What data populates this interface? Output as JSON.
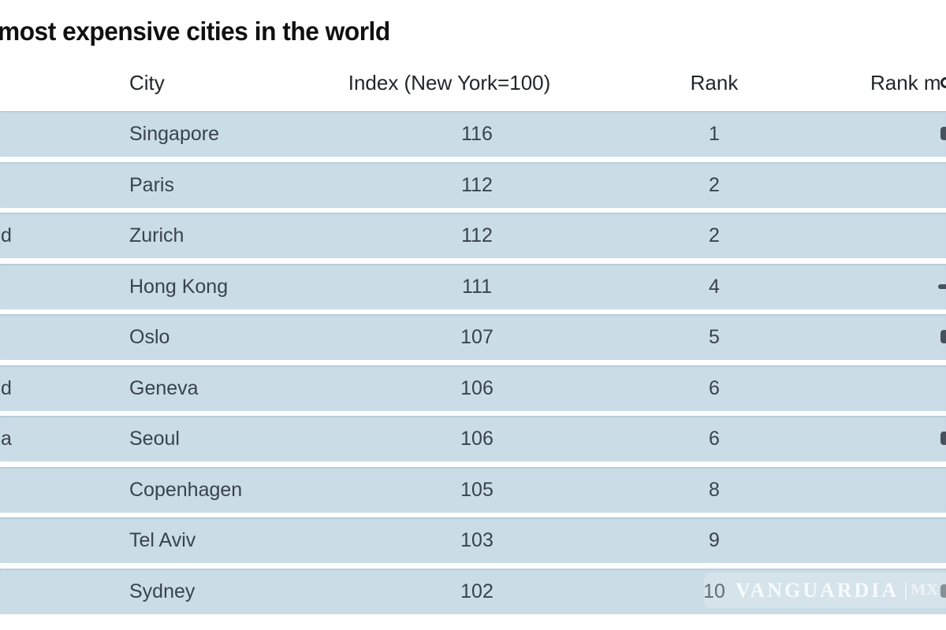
{
  "title": "most expensive cities in the world",
  "chart_data": {
    "type": "table",
    "title": "most expensive cities in the world",
    "columns": [
      "City",
      "Index (New York=100)",
      "Rank",
      "Rank m"
    ],
    "rows": [
      {
        "country_fragment": "",
        "city": "Singapore",
        "index": 116,
        "rank": 1
      },
      {
        "country_fragment": "",
        "city": "Paris",
        "index": 112,
        "rank": 2
      },
      {
        "country_fragment": "d",
        "city": "Zurich",
        "index": 112,
        "rank": 2
      },
      {
        "country_fragment": "",
        "city": "Hong Kong",
        "index": 111,
        "rank": 4
      },
      {
        "country_fragment": "",
        "city": "Oslo",
        "index": 107,
        "rank": 5
      },
      {
        "country_fragment": "d",
        "city": "Geneva",
        "index": 106,
        "rank": 6
      },
      {
        "country_fragment": "a",
        "city": "Seoul",
        "index": 106,
        "rank": 6
      },
      {
        "country_fragment": "",
        "city": "Copenhagen",
        "index": 105,
        "rank": 8
      },
      {
        "country_fragment": "",
        "city": "Tel Aviv",
        "index": 103,
        "rank": 9
      },
      {
        "country_fragment": "",
        "city": "Sydney",
        "index": 102,
        "rank": 10
      }
    ]
  },
  "watermark": {
    "text": "VANGUARDIA",
    "suffix": "MX"
  },
  "colors": {
    "row_bg": "#cadce6",
    "title_text": "#101010",
    "cell_text": "#39434c",
    "watermark_text": "#ffffff"
  }
}
